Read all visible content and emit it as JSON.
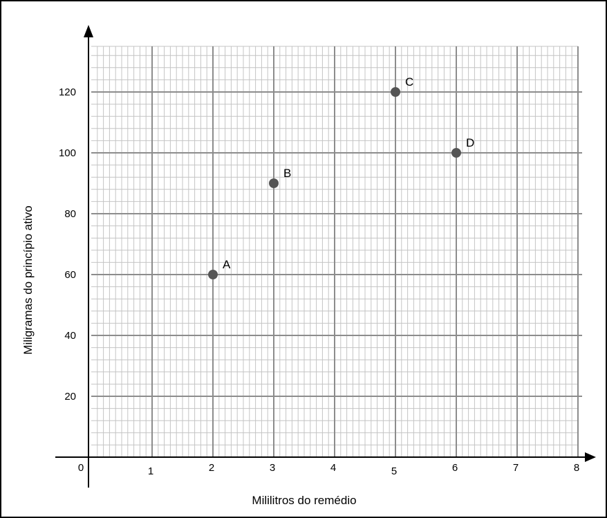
{
  "chart_data": {
    "type": "scatter",
    "xlabel": "Mililitros do remédio",
    "ylabel": "Miligramas do princípio ativo",
    "xlim": [
      0,
      8
    ],
    "ylim": [
      0,
      135
    ],
    "x_ticks": [
      "0",
      "1",
      "2",
      "3",
      "4",
      "5",
      "6",
      "7",
      "8"
    ],
    "y_ticks": [
      "20",
      "40",
      "60",
      "80",
      "100",
      "120"
    ],
    "grid": "on",
    "points": [
      {
        "label": "A",
        "x": 2,
        "y": 60
      },
      {
        "label": "B",
        "x": 3,
        "y": 90
      },
      {
        "label": "C",
        "x": 5,
        "y": 120
      },
      {
        "label": "D",
        "x": 6,
        "y": 100
      }
    ],
    "marker_color": "#555555"
  }
}
